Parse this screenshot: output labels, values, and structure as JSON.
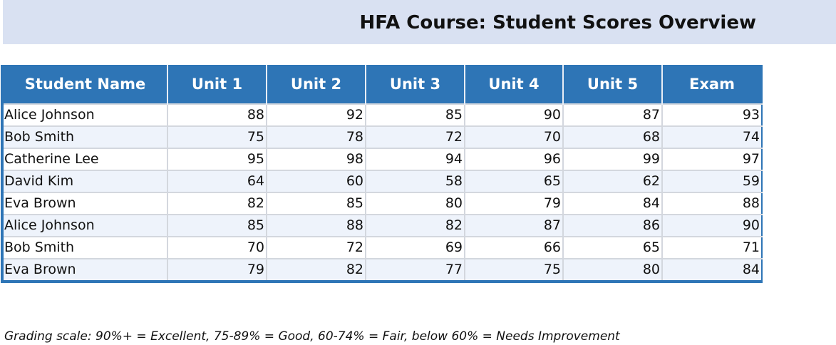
{
  "title": "HFA Course: Student Scores Overview",
  "table": {
    "headers": [
      "Student Name",
      "Unit 1",
      "Unit 2",
      "Unit 3",
      "Unit 4",
      "Unit 5",
      "Exam"
    ],
    "rows": [
      [
        "Alice Johnson",
        "88",
        "92",
        "85",
        "90",
        "87",
        "93"
      ],
      [
        "Bob Smith",
        "75",
        "78",
        "72",
        "70",
        "68",
        "74"
      ],
      [
        "Catherine Lee",
        "95",
        "98",
        "94",
        "96",
        "99",
        "97"
      ],
      [
        "David Kim",
        "64",
        "60",
        "58",
        "65",
        "62",
        "59"
      ],
      [
        "Eva Brown",
        "82",
        "85",
        "80",
        "79",
        "84",
        "88"
      ],
      [
        "Alice Johnson",
        "85",
        "88",
        "82",
        "87",
        "86",
        "90"
      ],
      [
        "Bob Smith",
        "70",
        "72",
        "69",
        "66",
        "65",
        "71"
      ],
      [
        "Eva Brown",
        "79",
        "82",
        "77",
        "75",
        "80",
        "84"
      ]
    ]
  },
  "footnote": "Grading scale: 90%+ = Excellent, 75-89% = Good, 60-74% = Fair, below 60% = Needs Improvement",
  "colors": {
    "title_band": "#d9e1f2",
    "header_fill": "#2e75b6",
    "header_text": "#ffffff",
    "row_alt_fill": "#eef3fb"
  }
}
